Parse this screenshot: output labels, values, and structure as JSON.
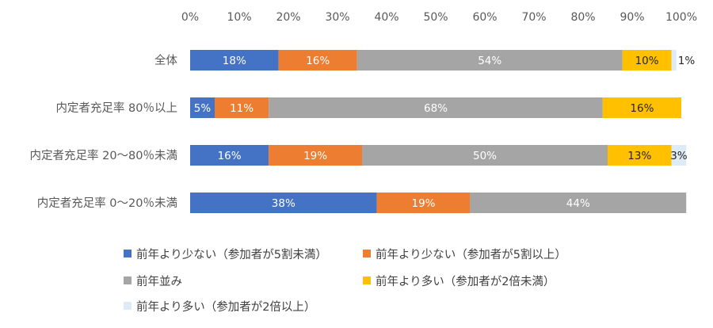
{
  "chart_data": {
    "type": "bar",
    "orientation": "horizontal",
    "stacked": true,
    "xlim": [
      0,
      100
    ],
    "x_ticks": [
      "0%",
      "10%",
      "20%",
      "30%",
      "40%",
      "50%",
      "60%",
      "70%",
      "80%",
      "90%",
      "100%"
    ],
    "x_tick_values": [
      0,
      10,
      20,
      30,
      40,
      50,
      60,
      70,
      80,
      90,
      100
    ],
    "x_axis_position": "top",
    "grid": false,
    "legend_position": "bottom",
    "categories": [
      "全体",
      "内定者充足率 80％以上",
      "内定者充足率 20～80％未満",
      "内定者充足率 0～20％未満"
    ],
    "series": [
      {
        "name": "前年より少ない（参加者が5割未満）",
        "color": "#4472C4",
        "values": [
          18,
          5,
          16,
          38
        ],
        "labels": [
          "18%",
          "5%",
          "16%",
          "38%"
        ]
      },
      {
        "name": "前年より少ない（参加者が5割以上）",
        "color": "#ED7D31",
        "values": [
          16,
          11,
          19,
          19
        ],
        "labels": [
          "16%",
          "11%",
          "19%",
          "19%"
        ]
      },
      {
        "name": "前年並み",
        "color": "#A5A5A5",
        "values": [
          54,
          68,
          50,
          44
        ],
        "labels": [
          "54%",
          "68%",
          "50%",
          "44%"
        ]
      },
      {
        "name": "前年より多い（参加者が2倍未満）",
        "color": "#FFC000",
        "values": [
          10,
          16,
          13,
          0
        ],
        "labels": [
          "10%",
          "16%",
          "13%",
          ""
        ]
      },
      {
        "name": "前年より多い（参加者が2倍以上）",
        "color": "#DDEBF7",
        "values": [
          1,
          0,
          3,
          0
        ],
        "labels": [
          "1%",
          "",
          "3%",
          ""
        ]
      }
    ]
  }
}
